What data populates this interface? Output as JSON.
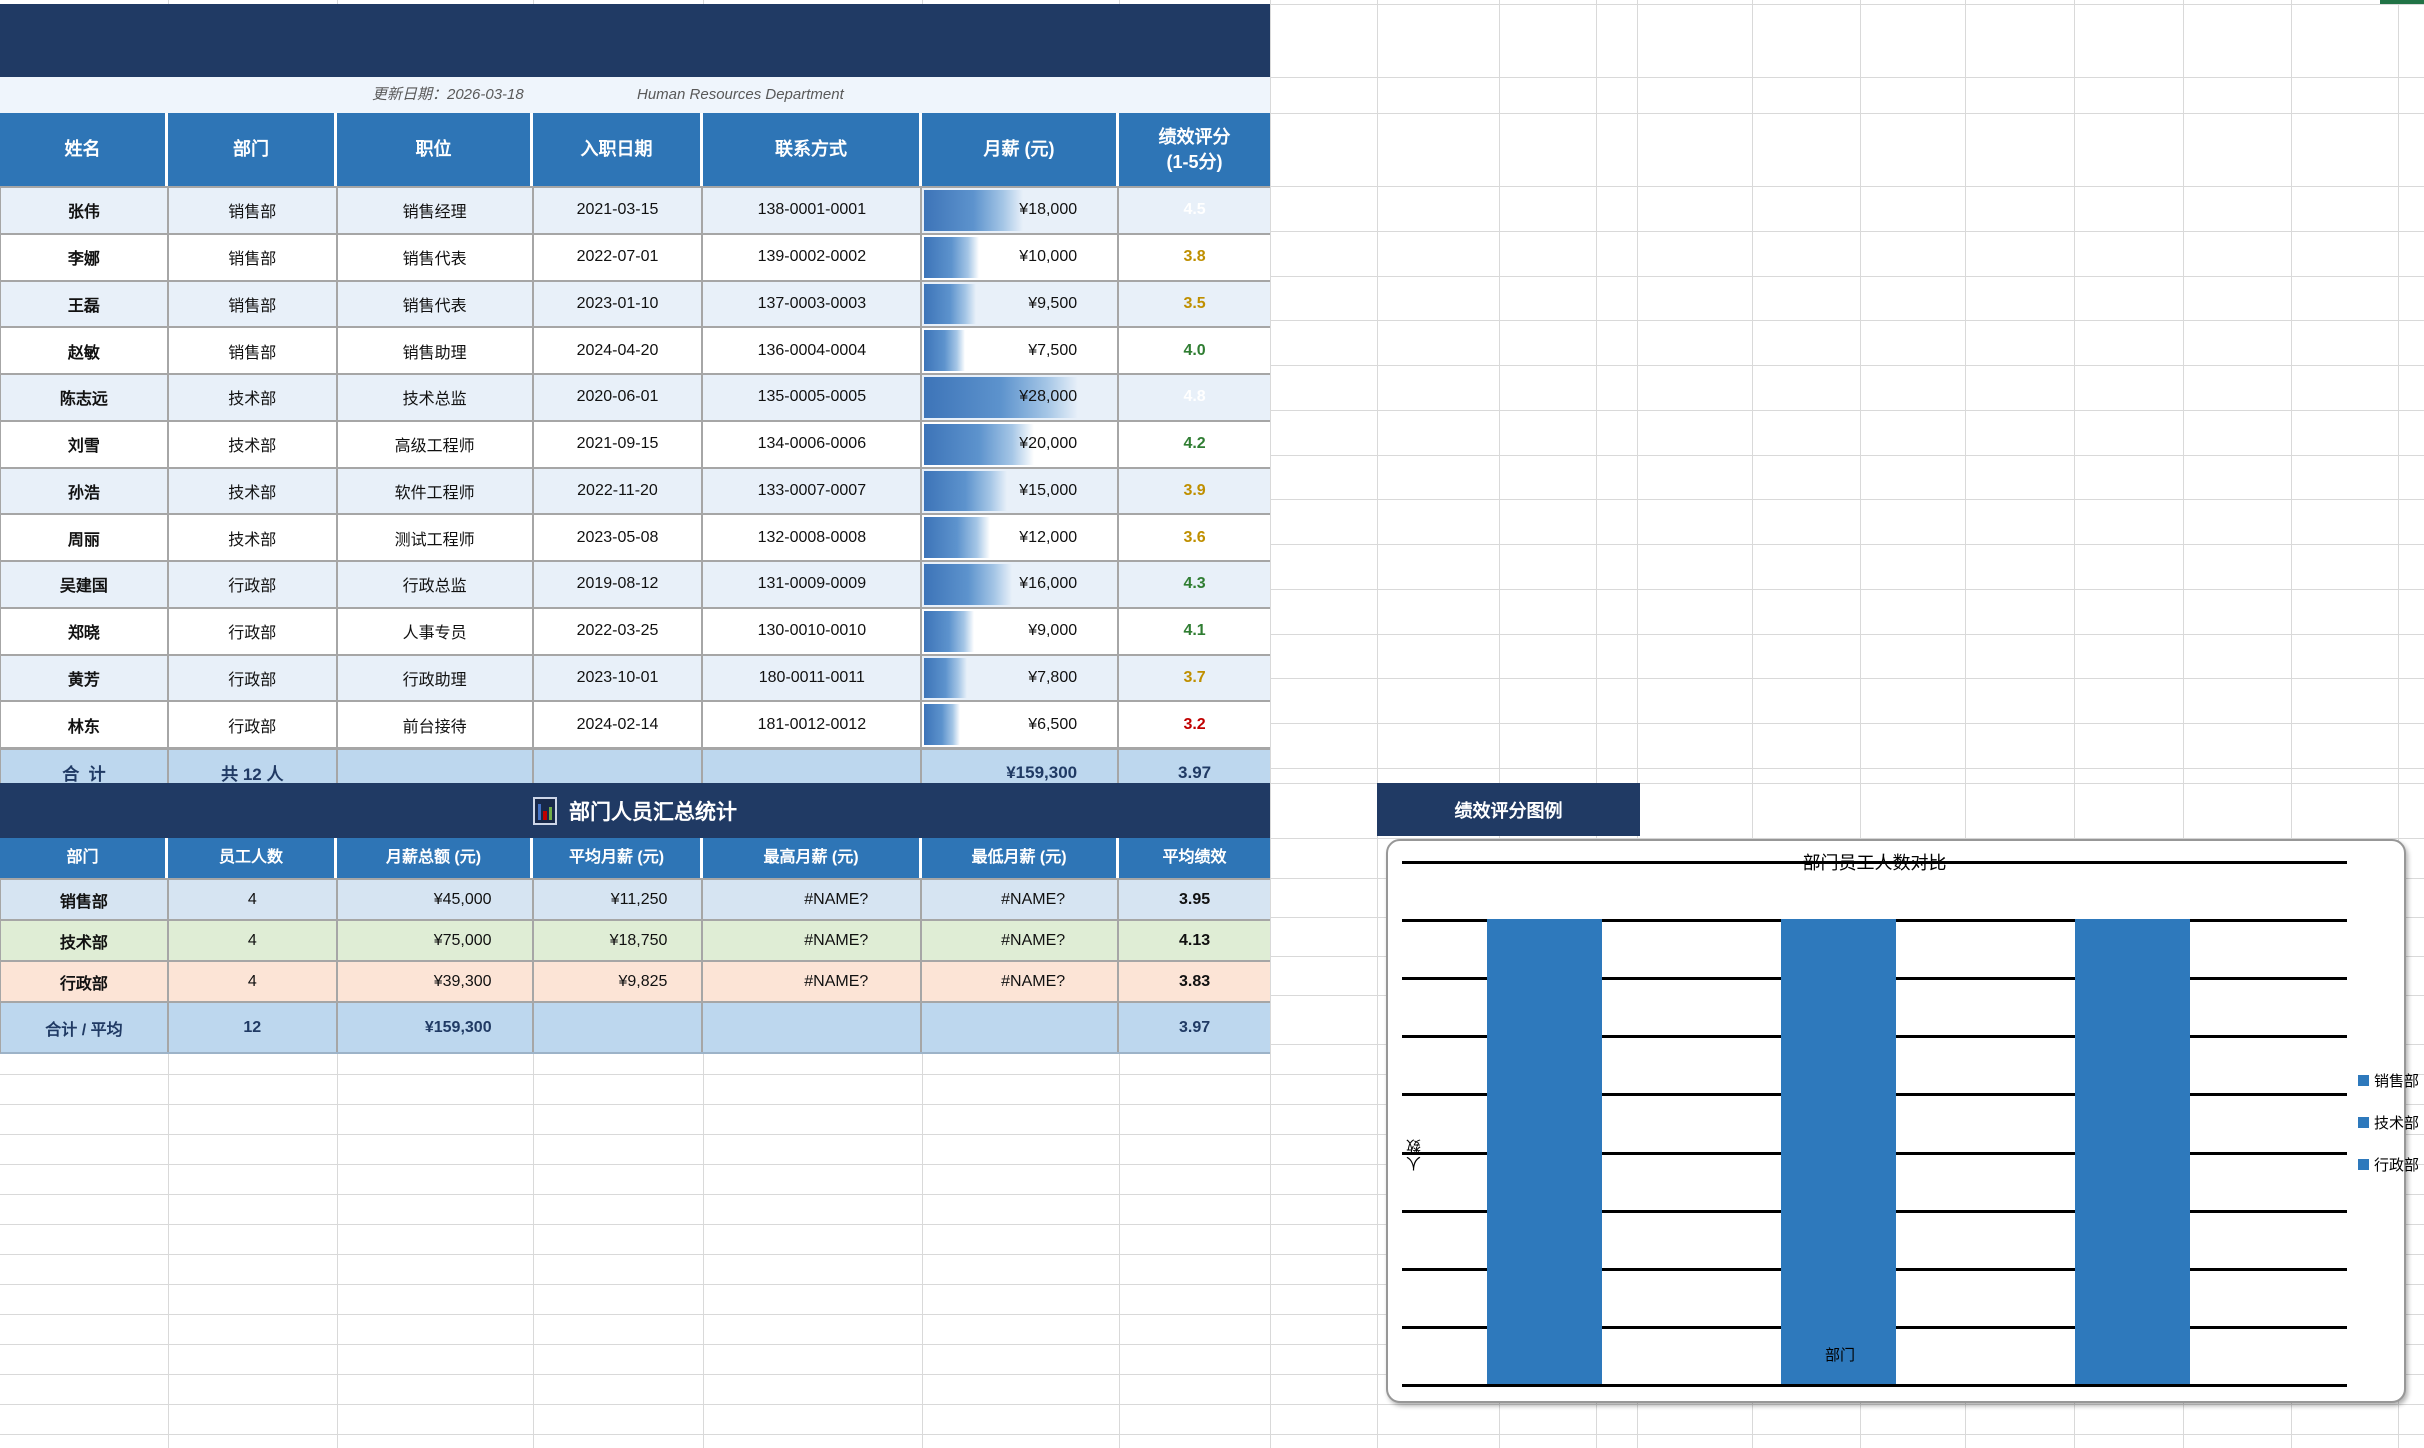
{
  "meta_row": {
    "update_label": "更新日期：2026-03-18",
    "department_en": "Human Resources Department"
  },
  "main_table": {
    "headers": [
      "姓名",
      "部门",
      "职位",
      "入职日期",
      "联系方式",
      "月薪 (元)",
      "绩效评分\n(1-5分)"
    ],
    "rows": [
      {
        "name": "张伟",
        "dept": "销售部",
        "title": "销售经理",
        "hire_date": "2021-03-15",
        "phone": "138-0001-0001",
        "salary": "¥18,000",
        "salary_value": 18000,
        "score": "4.5",
        "score_class": "sc-white"
      },
      {
        "name": "李娜",
        "dept": "销售部",
        "title": "销售代表",
        "hire_date": "2022-07-01",
        "phone": "139-0002-0002",
        "salary": "¥10,000",
        "salary_value": 10000,
        "score": "3.8",
        "score_class": "sc-orange"
      },
      {
        "name": "王磊",
        "dept": "销售部",
        "title": "销售代表",
        "hire_date": "2023-01-10",
        "phone": "137-0003-0003",
        "salary": "¥9,500",
        "salary_value": 9500,
        "score": "3.5",
        "score_class": "sc-orange"
      },
      {
        "name": "赵敏",
        "dept": "销售部",
        "title": "销售助理",
        "hire_date": "2024-04-20",
        "phone": "136-0004-0004",
        "salary": "¥7,500",
        "salary_value": 7500,
        "score": "4.0",
        "score_class": "sc-green"
      },
      {
        "name": "陈志远",
        "dept": "技术部",
        "title": "技术总监",
        "hire_date": "2020-06-01",
        "phone": "135-0005-0005",
        "salary": "¥28,000",
        "salary_value": 28000,
        "score": "4.8",
        "score_class": "sc-white"
      },
      {
        "name": "刘雪",
        "dept": "技术部",
        "title": "高级工程师",
        "hire_date": "2021-09-15",
        "phone": "134-0006-0006",
        "salary": "¥20,000",
        "salary_value": 20000,
        "score": "4.2",
        "score_class": "sc-green"
      },
      {
        "name": "孙浩",
        "dept": "技术部",
        "title": "软件工程师",
        "hire_date": "2022-11-20",
        "phone": "133-0007-0007",
        "salary": "¥15,000",
        "salary_value": 15000,
        "score": "3.9",
        "score_class": "sc-orange"
      },
      {
        "name": "周丽",
        "dept": "技术部",
        "title": "测试工程师",
        "hire_date": "2023-05-08",
        "phone": "132-0008-0008",
        "salary": "¥12,000",
        "salary_value": 12000,
        "score": "3.6",
        "score_class": "sc-orange"
      },
      {
        "name": "吴建国",
        "dept": "行政部",
        "title": "行政总监",
        "hire_date": "2019-08-12",
        "phone": "131-0009-0009",
        "salary": "¥16,000",
        "salary_value": 16000,
        "score": "4.3",
        "score_class": "sc-green"
      },
      {
        "name": "郑晓",
        "dept": "行政部",
        "title": "人事专员",
        "hire_date": "2022-03-25",
        "phone": "130-0010-0010",
        "salary": "¥9,000",
        "salary_value": 9000,
        "score": "4.1",
        "score_class": "sc-green"
      },
      {
        "name": "黄芳",
        "dept": "行政部",
        "title": "行政助理",
        "hire_date": "2023-10-01",
        "phone": "180-0011-0011",
        "salary": "¥7,800",
        "salary_value": 7800,
        "score": "3.7",
        "score_class": "sc-orange"
      },
      {
        "name": "林东",
        "dept": "行政部",
        "title": "前台接待",
        "hire_date": "2024-02-14",
        "phone": "181-0012-0012",
        "salary": "¥6,500",
        "salary_value": 6500,
        "score": "3.2",
        "score_class": "sc-red"
      }
    ],
    "total": {
      "label": "合  计",
      "count": "共 12 人",
      "salary": "¥159,300",
      "score": "3.97"
    }
  },
  "summary_table": {
    "title": "部门人员汇总统计",
    "headers": [
      "部门",
      "员工人数",
      "月薪总额 (元)",
      "平均月薪 (元)",
      "最高月薪 (元)",
      "最低月薪 (元)",
      "平均绩效"
    ],
    "rows": [
      {
        "dept": "销售部",
        "count": "4",
        "total": "¥45,000",
        "avg": "¥11,250",
        "max": "#NAME?",
        "min": "#NAME?",
        "score": "3.95",
        "bg": "#D6E4F2"
      },
      {
        "dept": "技术部",
        "count": "4",
        "total": "¥75,000",
        "avg": "¥18,750",
        "max": "#NAME?",
        "min": "#NAME?",
        "score": "4.13",
        "bg": "#DFEDD5"
      },
      {
        "dept": "行政部",
        "count": "4",
        "total": "¥39,300",
        "avg": "¥9,825",
        "max": "#NAME?",
        "min": "#NAME?",
        "score": "3.83",
        "bg": "#FCE4D6"
      }
    ],
    "total_row": {
      "label": "合计 / 平均",
      "count": "12",
      "total": "¥159,300",
      "score": "3.97"
    }
  },
  "legend_header": {
    "text": "绩效评分图例"
  },
  "chart_data": {
    "type": "bar",
    "title": "部门员工人数对比",
    "xlabel": "部门",
    "ylabel": "人数",
    "categories": [
      "销售部",
      "技术部",
      "行政部"
    ],
    "values": [
      4,
      4,
      4
    ],
    "ylim": [
      0,
      4.5
    ],
    "grid": "on",
    "legend_position": "right",
    "legend_entries": [
      "销售部",
      "技术部",
      "行政部"
    ],
    "bar_color": "#2E79BC"
  },
  "colors": {
    "navy": "#203A64",
    "header_blue": "#2E75B6",
    "alt_row_blue": "#E8F0F9",
    "total_row_blue": "#BDD7EE",
    "score_orange": "#BF8F00",
    "score_green": "#2F7D32",
    "score_red": "#C00000",
    "error_triangle_green": "#217346",
    "databar_blue": "#3D74B8",
    "selection_green": "#217346"
  }
}
